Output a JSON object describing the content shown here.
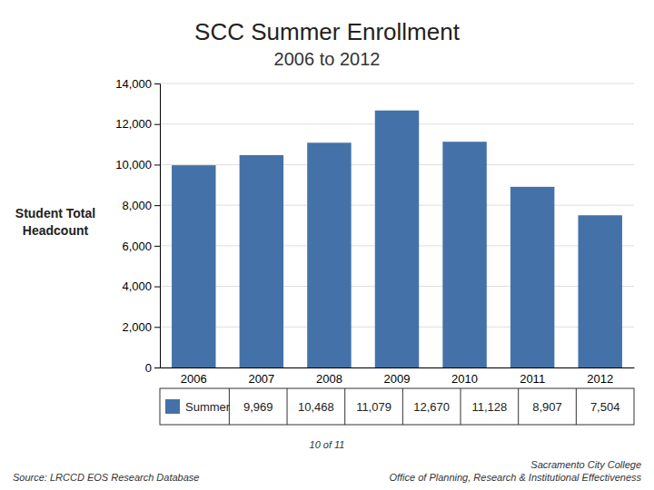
{
  "chart_data": {
    "type": "bar",
    "title": "SCC Summer Enrollment",
    "subtitle": "2006 to 2012",
    "y_label": "Student Total\nHeadcount",
    "categories": [
      "2006",
      "2007",
      "2008",
      "2009",
      "2010",
      "2011",
      "2012"
    ],
    "series": [
      {
        "name": "Summer",
        "color": "#4472a8",
        "values": [
          9969,
          10468,
          11079,
          12670,
          11128,
          8907,
          7504
        ],
        "value_labels": [
          "9,969",
          "10,468",
          "11,079",
          "12,670",
          "11,128",
          "8,907",
          "7,504"
        ]
      }
    ],
    "ylim": [
      0,
      14000
    ],
    "yticks": [
      0,
      {
        "value": 2000,
        "label": "2,000"
      },
      {
        "value": 4000,
        "label": "4,000"
      },
      {
        "value": 6000,
        "label": "6,000"
      },
      {
        "value": 8000,
        "label": "8,000"
      },
      {
        "value": 10000,
        "label": "10,000"
      },
      {
        "value": 12000,
        "label": "12,000"
      },
      {
        "value": 14000,
        "label": "14,000"
      }
    ],
    "grid": true,
    "legend": "bottom",
    "annotations": [
      "10 of 11",
      "Source: LRCCD EOS Research Database",
      "Sacramento City College",
      "Office of Planning, Research & Institutional Effectiveness"
    ]
  }
}
